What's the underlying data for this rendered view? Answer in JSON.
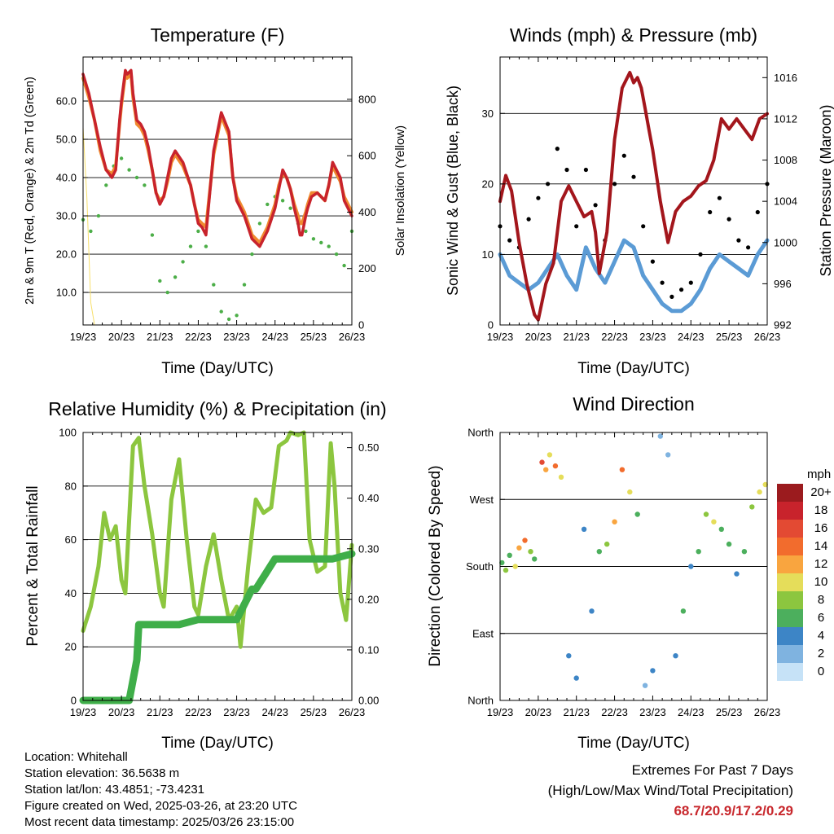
{
  "x_ticks": [
    "19/23",
    "20/23",
    "21/23",
    "22/23",
    "23/23",
    "24/23",
    "25/23",
    "26/23"
  ],
  "x_label": "Time (Day/UTC)",
  "colors": {
    "temp_red": "#c8232c",
    "temp_orange": "#f08a30",
    "dewpoint_green": "#4cae48",
    "insolation_yellow": "#f7df6a",
    "wind_blue": "#5b9bd5",
    "gust_black": "#000000",
    "pressure_maroon": "#a3161c",
    "rh_lightgreen": "#8cc63f",
    "precip_green": "#3fae49",
    "extremes_red": "#c8282d"
  },
  "chart_data": [
    {
      "type": "line",
      "title": "Temperature (F)",
      "xlabel": "Time (Day/UTC)",
      "ylabel": "2m & 9m T (Red, Orange) & 2m Td (Green)",
      "ylabel_right": "Solar Insolation (Yellow)",
      "ylim": [
        1.5,
        71.5
      ],
      "ylim_right": [
        0,
        950
      ],
      "yticks": [
        "10.0",
        "20.0",
        "30.0",
        "40.0",
        "50.0",
        "60.0"
      ],
      "yticks_right": [
        "0",
        "200",
        "400",
        "600",
        "800"
      ],
      "x_days": [
        0,
        7
      ],
      "grid": true,
      "series": [
        {
          "x": [
            0,
            0.15,
            0.3,
            0.45,
            0.6,
            0.75,
            0.85,
            0.95,
            1.0,
            1.1,
            1.15,
            1.25,
            1.3,
            1.4,
            1.5,
            1.6,
            1.7,
            1.8,
            1.9,
            2.0,
            2.1,
            2.2,
            2.3,
            2.4,
            2.6,
            2.8,
            2.9,
            3.0,
            3.1,
            3.2,
            3.4,
            3.6,
            3.8,
            3.9,
            4.0,
            4.1,
            4.2,
            4.4,
            4.6,
            4.8,
            5.0,
            5.1,
            5.2,
            5.3,
            5.4,
            5.5,
            5.6,
            5.65,
            5.7,
            5.8,
            5.85,
            5.95,
            6.1,
            6.2,
            6.3,
            6.4,
            6.5,
            6.6,
            6.7,
            6.8,
            6.9,
            7.0
          ],
          "values": [
            67,
            62,
            55,
            48,
            42,
            40,
            42,
            55,
            60,
            68,
            67,
            68,
            62,
            55,
            54,
            52,
            48,
            42,
            36,
            33,
            35,
            40,
            45,
            47,
            44,
            38,
            33,
            28,
            27,
            25,
            47,
            57,
            52,
            40,
            34,
            32,
            30,
            24,
            22,
            26,
            32,
            37,
            42,
            40,
            37,
            32,
            28,
            25,
            25,
            30,
            32,
            35,
            36,
            35,
            34,
            38,
            44,
            42,
            40,
            34,
            32,
            30
          ]
        },
        {
          "x": [
            0,
            0.15,
            0.3,
            0.45,
            0.6,
            0.75,
            0.85,
            0.95,
            1.0,
            1.1,
            1.15,
            1.25,
            1.3,
            1.4,
            1.5,
            1.6,
            1.7,
            1.8,
            1.9,
            2.0,
            2.1,
            2.2,
            2.3,
            2.4,
            2.6,
            2.8,
            2.9,
            3.0,
            3.1,
            3.2,
            3.4,
            3.6,
            3.8,
            3.9,
            4.0,
            4.1,
            4.2,
            4.4,
            4.6,
            4.8,
            5.0,
            5.1,
            5.2,
            5.3,
            5.4,
            5.5,
            5.6,
            5.65,
            5.7,
            5.8,
            5.85,
            5.95,
            6.1,
            6.2,
            6.3,
            6.4,
            6.5,
            6.6,
            6.7,
            6.8,
            6.9,
            7.0
          ],
          "values": [
            66,
            61,
            55,
            47,
            42,
            41,
            43,
            54,
            59,
            67,
            66,
            67,
            61,
            54,
            53,
            51,
            47,
            42,
            36,
            34,
            35,
            39,
            44,
            46,
            43,
            38,
            33,
            29,
            28,
            27,
            46,
            56,
            51,
            40,
            35,
            33,
            31,
            25,
            23,
            27,
            33,
            38,
            41,
            40,
            37,
            33,
            30,
            28,
            28,
            31,
            33,
            36,
            36,
            35,
            34,
            38,
            43,
            41,
            39,
            35,
            33,
            31
          ]
        },
        {
          "x": [
            0,
            0.2,
            0.4,
            0.6,
            0.8,
            1.0,
            1.2,
            1.4,
            1.6,
            1.8,
            2.0,
            2.2,
            2.4,
            2.6,
            2.8,
            3.0,
            3.2,
            3.4,
            3.6,
            3.8,
            4.0,
            4.2,
            4.4,
            4.6,
            4.8,
            5.0,
            5.2,
            5.4,
            5.6,
            5.8,
            6.0,
            6.2,
            6.4,
            6.6,
            6.8,
            7.0
          ],
          "values": [
            29,
            26,
            30,
            38,
            43,
            45,
            42,
            40,
            38,
            25,
            13,
            10,
            14,
            18,
            22,
            26,
            22,
            12,
            5,
            3,
            4,
            12,
            20,
            28,
            33,
            35,
            34,
            32,
            28,
            26,
            24,
            23,
            22,
            20,
            17,
            26
          ]
        },
        {
          "x": [
            0,
            0.1,
            0.2,
            0.3,
            0.4,
            0.5,
            0.6,
            0.7,
            0.8,
            0.9,
            1.0,
            1.1,
            1.2,
            1.3,
            1.4,
            1.5,
            1.6,
            1.7,
            1.8,
            1.9,
            2.0,
            2.1,
            2.2,
            2.3,
            2.4,
            2.5,
            2.6,
            2.7,
            2.8,
            2.9,
            3.0,
            3.1,
            3.2,
            3.3,
            3.4,
            3.5,
            3.6,
            3.7,
            3.8,
            3.9,
            4.0,
            4.1,
            4.2,
            4.3,
            4.4,
            4.5,
            4.6,
            4.7,
            4.8,
            4.9,
            5.0,
            5.1,
            5.2,
            5.3,
            5.4,
            5.5,
            5.6,
            5.7,
            5.8,
            5.9,
            6.0,
            6.1,
            6.2,
            6.3,
            6.4,
            6.5,
            6.6,
            6.7,
            6.8,
            6.9,
            7.0
          ],
          "values": [
            700,
            450,
            80,
            0,
            0,
            0,
            0,
            0,
            0,
            0,
            0,
            0,
            0,
            0,
            0,
            0,
            0,
            0,
            0,
            0,
            0,
            0,
            0,
            0,
            0,
            0,
            0,
            0,
            0,
            0,
            0,
            0,
            0,
            0,
            0,
            0,
            0,
            0,
            0,
            0,
            0,
            0,
            0,
            0,
            0,
            0,
            0,
            0,
            0,
            0,
            0,
            0,
            0,
            0,
            0,
            0,
            0,
            0,
            0,
            0,
            0,
            0,
            0,
            0,
            0,
            0,
            0,
            0,
            0,
            0,
            0
          ]
        }
      ]
    },
    {
      "type": "line",
      "title": "Winds (mph) & Pressure (mb)",
      "xlabel": "Time (Day/UTC)",
      "ylabel": "Sonic Wind & Gust (Blue, Black)",
      "ylabel_right": "Station Pressure (Maroon)",
      "ylim": [
        0,
        38
      ],
      "ylim_right": [
        992,
        1018
      ],
      "yticks": [
        "0",
        "10",
        "20",
        "30"
      ],
      "yticks_right": [
        "992",
        "996",
        "1000",
        "1004",
        "1008",
        "1012",
        "1016"
      ],
      "x_days": [
        0,
        7
      ],
      "grid": true,
      "series": [
        {
          "x": [
            0,
            0.25,
            0.5,
            0.75,
            1.0,
            1.25,
            1.5,
            1.75,
            2.0,
            2.25,
            2.5,
            2.75,
            3.0,
            3.25,
            3.5,
            3.75,
            4.0,
            4.25,
            4.5,
            4.75,
            5.0,
            5.25,
            5.5,
            5.75,
            6.0,
            6.25,
            6.5,
            6.75,
            7.0
          ],
          "values": [
            10,
            7,
            6,
            5,
            6,
            8,
            10,
            7,
            5,
            11,
            8,
            6,
            9,
            12,
            11,
            7,
            5,
            3,
            2,
            2,
            3,
            5,
            8,
            10,
            9,
            8,
            7,
            10,
            12
          ]
        },
        {
          "x": [
            0,
            0.25,
            0.5,
            0.75,
            1.0,
            1.25,
            1.5,
            1.75,
            2.0,
            2.25,
            2.5,
            2.75,
            3.0,
            3.25,
            3.5,
            3.75,
            4.0,
            4.25,
            4.5,
            4.75,
            5.0,
            5.25,
            5.5,
            5.75,
            6.0,
            6.25,
            6.5,
            6.75,
            7.0
          ],
          "values": [
            14,
            12,
            11,
            15,
            18,
            20,
            25,
            22,
            14,
            22,
            17,
            12,
            20,
            24,
            21,
            14,
            9,
            6,
            4,
            5,
            6,
            10,
            16,
            18,
            15,
            12,
            11,
            16,
            20
          ]
        },
        {
          "x": [
            0,
            0.15,
            0.3,
            0.5,
            0.7,
            0.9,
            1.0,
            1.2,
            1.4,
            1.6,
            1.8,
            2.0,
            2.2,
            2.4,
            2.5,
            2.6,
            2.8,
            3.0,
            3.2,
            3.4,
            3.5,
            3.6,
            3.7,
            3.8,
            3.9,
            4.0,
            4.2,
            4.4,
            4.6,
            4.8,
            5.0,
            5.2,
            5.4,
            5.6,
            5.8,
            6.0,
            6.2,
            6.4,
            6.6,
            6.8,
            7.0
          ],
          "values": [
            1004,
            1006.5,
            1005,
            1000,
            996,
            993,
            992.5,
            996,
            998,
            1004,
            1005.5,
            1004,
            1002.5,
            1003,
            1001,
            997,
            1001,
            1010,
            1015,
            1016.5,
            1015.5,
            1016,
            1015,
            1013,
            1011,
            1009,
            1004,
            1000,
            1003,
            1004,
            1004.5,
            1005.5,
            1006,
            1008,
            1012,
            1011,
            1012,
            1011,
            1010,
            1012,
            1012.5
          ]
        }
      ]
    },
    {
      "type": "line",
      "title": "Relative Humidity (%) & Precipitation (in)",
      "xlabel": "Time (Day/UTC)",
      "ylabel": "Percent & Total Rainfall",
      "ylim": [
        0,
        100
      ],
      "ylim_right": [
        0,
        0.53
      ],
      "yticks": [
        "0",
        "20",
        "40",
        "60",
        "80",
        "100"
      ],
      "yticks_right": [
        "0.00",
        "0.10",
        "0.20",
        "0.30",
        "0.40",
        "0.50"
      ],
      "x_days": [
        0,
        7
      ],
      "grid": true,
      "series": [
        {
          "x": [
            0,
            0.2,
            0.4,
            0.55,
            0.7,
            0.85,
            1.0,
            1.1,
            1.3,
            1.45,
            1.6,
            1.8,
            2.0,
            2.1,
            2.3,
            2.5,
            2.7,
            2.9,
            3.0,
            3.2,
            3.4,
            3.6,
            3.8,
            4.0,
            4.1,
            4.3,
            4.5,
            4.7,
            4.9,
            5.1,
            5.3,
            5.4,
            5.6,
            5.75,
            5.9,
            6.1,
            6.3,
            6.45,
            6.55,
            6.7,
            6.85,
            7.0
          ],
          "values": [
            26,
            35,
            50,
            70,
            60,
            65,
            45,
            40,
            95,
            98,
            80,
            62,
            40,
            35,
            75,
            90,
            60,
            35,
            32,
            50,
            62,
            45,
            30,
            35,
            20,
            50,
            75,
            70,
            72,
            95,
            97,
            100,
            99,
            100,
            60,
            48,
            50,
            96,
            80,
            40,
            30,
            58
          ]
        },
        {
          "x": [
            0,
            1.2,
            1.4,
            1.45,
            2.0,
            2.5,
            3.0,
            3.3,
            3.5,
            4.0,
            4.4,
            4.5,
            5.0,
            5.3,
            5.5,
            6.0,
            6.5,
            7.0
          ],
          "values": [
            0,
            0,
            0.08,
            0.15,
            0.15,
            0.15,
            0.16,
            0.16,
            0.16,
            0.16,
            0.22,
            0.22,
            0.28,
            0.28,
            0.28,
            0.28,
            0.28,
            0.29
          ]
        }
      ]
    },
    {
      "type": "scatter",
      "title": "Wind Direction",
      "xlabel": "Time (Day/UTC)",
      "ylabel": "Direction (Colored By Speed)",
      "ylim": [
        0,
        360
      ],
      "yticks": [
        "North",
        "East",
        "South",
        "West",
        "North"
      ],
      "x_days": [
        0,
        7
      ],
      "grid": true,
      "legend": {
        "placement": "right",
        "title": "mph",
        "labels": [
          "20+",
          "18",
          "16",
          "14",
          "12",
          "10",
          "8",
          "6",
          "4",
          "2",
          "0"
        ]
      },
      "speed_colors": [
        "#9b1b1e",
        "#c8232c",
        "#e34a33",
        "#f26c2d",
        "#f9a53f",
        "#e5dd5a",
        "#8cc63f",
        "#4caf5d",
        "#3d85c6",
        "#7fb3e0",
        "#c6e2f7"
      ],
      "series": [
        {
          "x": [
            0.05,
            0.15,
            0.25,
            0.4,
            0.5,
            0.65,
            0.8,
            0.9,
            1.1,
            1.2,
            1.3,
            1.45,
            1.6,
            1.8,
            2.0,
            2.2,
            2.4,
            2.6,
            2.8,
            3.0,
            3.2,
            3.4,
            3.6,
            3.8,
            4.0,
            4.2,
            4.4,
            4.6,
            4.8,
            5.0,
            5.2,
            5.4,
            5.6,
            5.8,
            6.0,
            6.2,
            6.4,
            6.6,
            6.8,
            6.95
          ],
          "values": [
            185,
            175,
            195,
            180,
            205,
            215,
            200,
            190,
            320,
            310,
            330,
            315,
            300,
            60,
            30,
            230,
            120,
            200,
            210,
            240,
            310,
            280,
            250,
            20,
            40,
            355,
            330,
            60,
            120,
            180,
            200,
            250,
            240,
            230,
            210,
            170,
            200,
            260,
            280,
            290
          ],
          "speeds": [
            6,
            7,
            6,
            9,
            12,
            14,
            8,
            5,
            16,
            12,
            10,
            14,
            9,
            4,
            3,
            4,
            4,
            6,
            8,
            12,
            14,
            10,
            6,
            2,
            3,
            2,
            1,
            4,
            5,
            3,
            5,
            8,
            10,
            6,
            5,
            3,
            6,
            7,
            9,
            10
          ]
        }
      ]
    }
  ],
  "info": {
    "location": "Location: Whitehall",
    "elevation": "Station elevation: 36.5638 m",
    "latlon": "Station lat/lon: 43.4851; -73.4231",
    "created": "Figure created on Wed, 2025-03-26, at 23:20 UTC",
    "recent": "Most recent data timestamp: 2025/03/26 23:15:00"
  },
  "extremes": {
    "title": "Extremes For Past 7 Days",
    "subtitle": "(High/Low/Max Wind/Total Precipitation)",
    "values": "68.7/20.9/17.2/0.29"
  }
}
